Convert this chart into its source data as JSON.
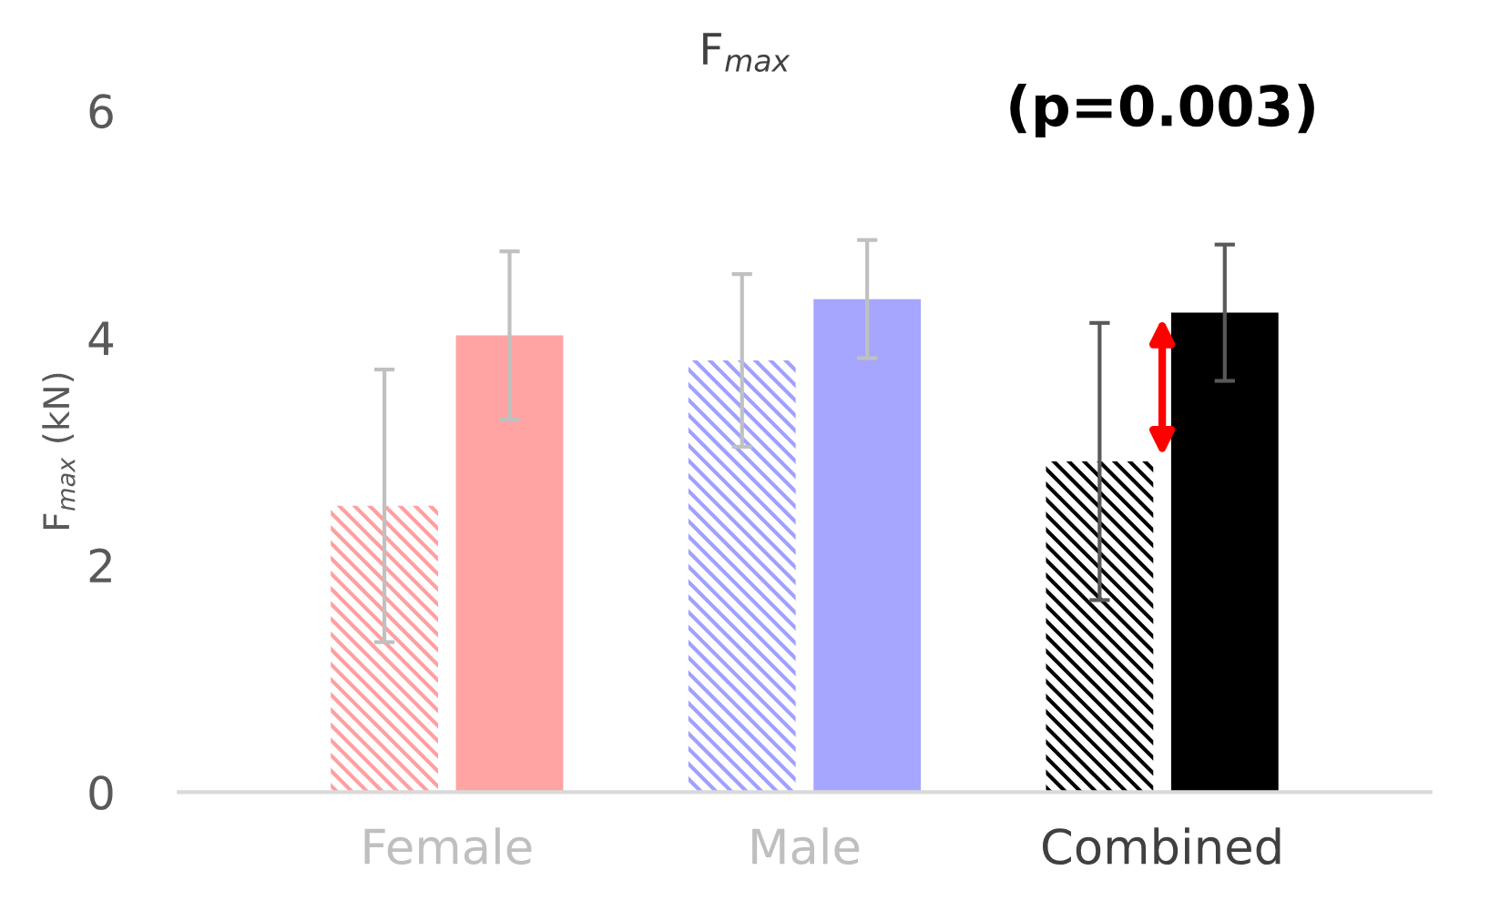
{
  "chart_data": {
    "type": "bar",
    "title": "F$_{max}$",
    "ylabel": "F$_{max}$ (kN)",
    "categories": [
      "Female",
      "Male",
      "Combined"
    ],
    "series": [
      {
        "colors": [
          "#ff9f9f",
          "#a0a0ff",
          "#000000"
        ],
        "values": [
          2.52,
          3.8,
          2.91
        ],
        "errors": [
          1.2,
          0.76,
          1.22
        ]
      },
      {
        "colors": [
          "#ffa3a3",
          "#a6a6ff",
          "#000000"
        ],
        "values": [
          4.02,
          4.34,
          4.22
        ],
        "errors": [
          0.74,
          0.52,
          0.6
        ]
      }
    ],
    "ylim": [
      0,
      6
    ],
    "yticks": [
      0,
      2,
      4,
      6
    ],
    "grid": false,
    "legend": false,
    "annotations": [
      "(p=0.003)"
    ]
  }
}
